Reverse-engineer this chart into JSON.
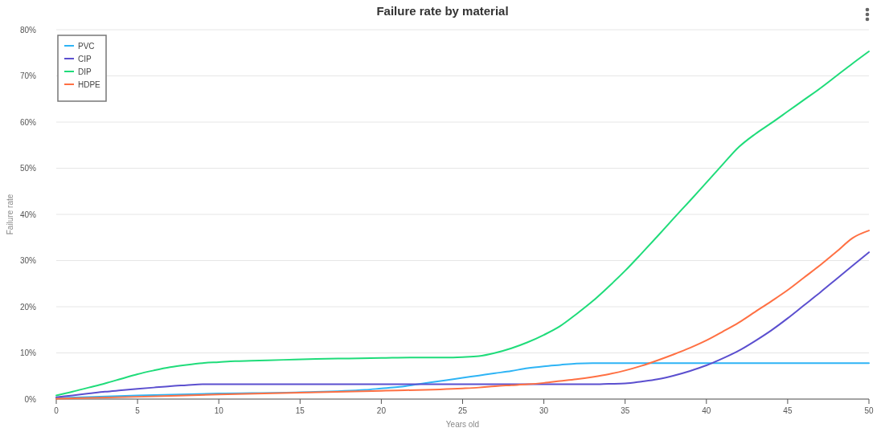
{
  "chart_data": {
    "type": "line",
    "title": "Failure rate by material",
    "xlabel": "Years old",
    "ylabel": "Failure rate",
    "xlim": [
      0,
      50
    ],
    "xticks": [
      0,
      5,
      10,
      15,
      20,
      25,
      30,
      35,
      40,
      45,
      50
    ],
    "ylim": [
      0,
      80
    ],
    "yticks": [
      {
        "value": 0,
        "label": "0%"
      },
      {
        "value": 10,
        "label": "10%"
      },
      {
        "value": 20,
        "label": "20%"
      },
      {
        "value": 30,
        "label": "30%"
      },
      {
        "value": 40,
        "label": "40%"
      },
      {
        "value": 50,
        "label": "50%"
      },
      {
        "value": 60,
        "label": "60%"
      },
      {
        "value": 70,
        "label": "70%"
      },
      {
        "value": 80,
        "label": "80%"
      }
    ],
    "grid": "y",
    "legend": "top left",
    "marker": "none",
    "line_style": "solid",
    "series": [
      {
        "name": "PVC",
        "color": "#2eb4f5",
        "x": [
          0,
          5,
          10,
          15,
          19,
          20,
          21,
          22,
          23,
          24,
          25,
          26,
          27,
          28,
          29,
          30,
          31,
          32,
          33,
          50
        ],
        "values": [
          0.2,
          0.8,
          1.2,
          1.5,
          2.0,
          2.3,
          2.6,
          3.1,
          3.6,
          4.1,
          4.6,
          5.1,
          5.6,
          6.1,
          6.7,
          7.1,
          7.4,
          7.7,
          7.8,
          7.8
        ]
      },
      {
        "name": "CIP",
        "color": "#5b4fcf",
        "x": [
          0,
          1,
          2,
          3,
          4,
          5,
          6,
          7,
          8,
          9,
          10,
          20,
          33,
          34,
          35,
          36,
          37,
          38,
          39,
          40,
          41,
          42,
          43,
          44,
          45,
          46,
          47,
          48,
          49,
          50
        ],
        "values": [
          0.4,
          0.8,
          1.2,
          1.6,
          1.9,
          2.2,
          2.5,
          2.8,
          3.0,
          3.2,
          3.2,
          3.2,
          3.2,
          3.3,
          3.4,
          3.8,
          4.3,
          5.1,
          6.1,
          7.3,
          8.8,
          10.5,
          12.6,
          14.9,
          17.5,
          20.3,
          23.1,
          26.0,
          28.9,
          31.8
        ]
      },
      {
        "name": "DIP",
        "color": "#1fdc7a",
        "x": [
          0,
          1,
          2,
          3,
          4,
          5,
          6,
          7,
          8,
          9,
          10,
          11,
          12,
          14,
          16,
          18,
          20,
          22,
          24,
          25,
          26,
          27,
          28,
          29,
          30,
          31,
          32,
          33,
          34,
          35,
          36,
          37,
          38,
          39,
          40,
          41,
          42,
          43,
          44,
          45,
          46,
          47,
          48,
          49,
          50
        ],
        "values": [
          0.8,
          1.6,
          2.5,
          3.4,
          4.4,
          5.4,
          6.2,
          6.9,
          7.4,
          7.8,
          8.0,
          8.2,
          8.3,
          8.5,
          8.7,
          8.8,
          8.9,
          9.0,
          9.0,
          9.1,
          9.3,
          10.0,
          11.0,
          12.3,
          13.9,
          15.8,
          18.4,
          21.2,
          24.4,
          27.8,
          31.5,
          35.3,
          39.2,
          43.0,
          46.9,
          50.8,
          54.6,
          57.4,
          59.8,
          62.3,
          64.8,
          67.3,
          70.0,
          72.7,
          75.3
        ]
      },
      {
        "name": "HDPE",
        "color": "#ff7043",
        "x": [
          0,
          5,
          10,
          15,
          20,
          25,
          26,
          27,
          28,
          29,
          30,
          31,
          32,
          33,
          34,
          35,
          36,
          37,
          38,
          39,
          40,
          41,
          42,
          43,
          44,
          45,
          46,
          47,
          48,
          49,
          50
        ],
        "values": [
          0.1,
          0.5,
          1.0,
          1.4,
          1.8,
          2.3,
          2.5,
          2.8,
          3.0,
          3.2,
          3.5,
          3.9,
          4.3,
          4.8,
          5.4,
          6.2,
          7.2,
          8.4,
          9.7,
          11.1,
          12.7,
          14.6,
          16.6,
          18.9,
          21.2,
          23.6,
          26.3,
          29.0,
          31.9,
          34.9,
          36.5
        ]
      }
    ]
  }
}
